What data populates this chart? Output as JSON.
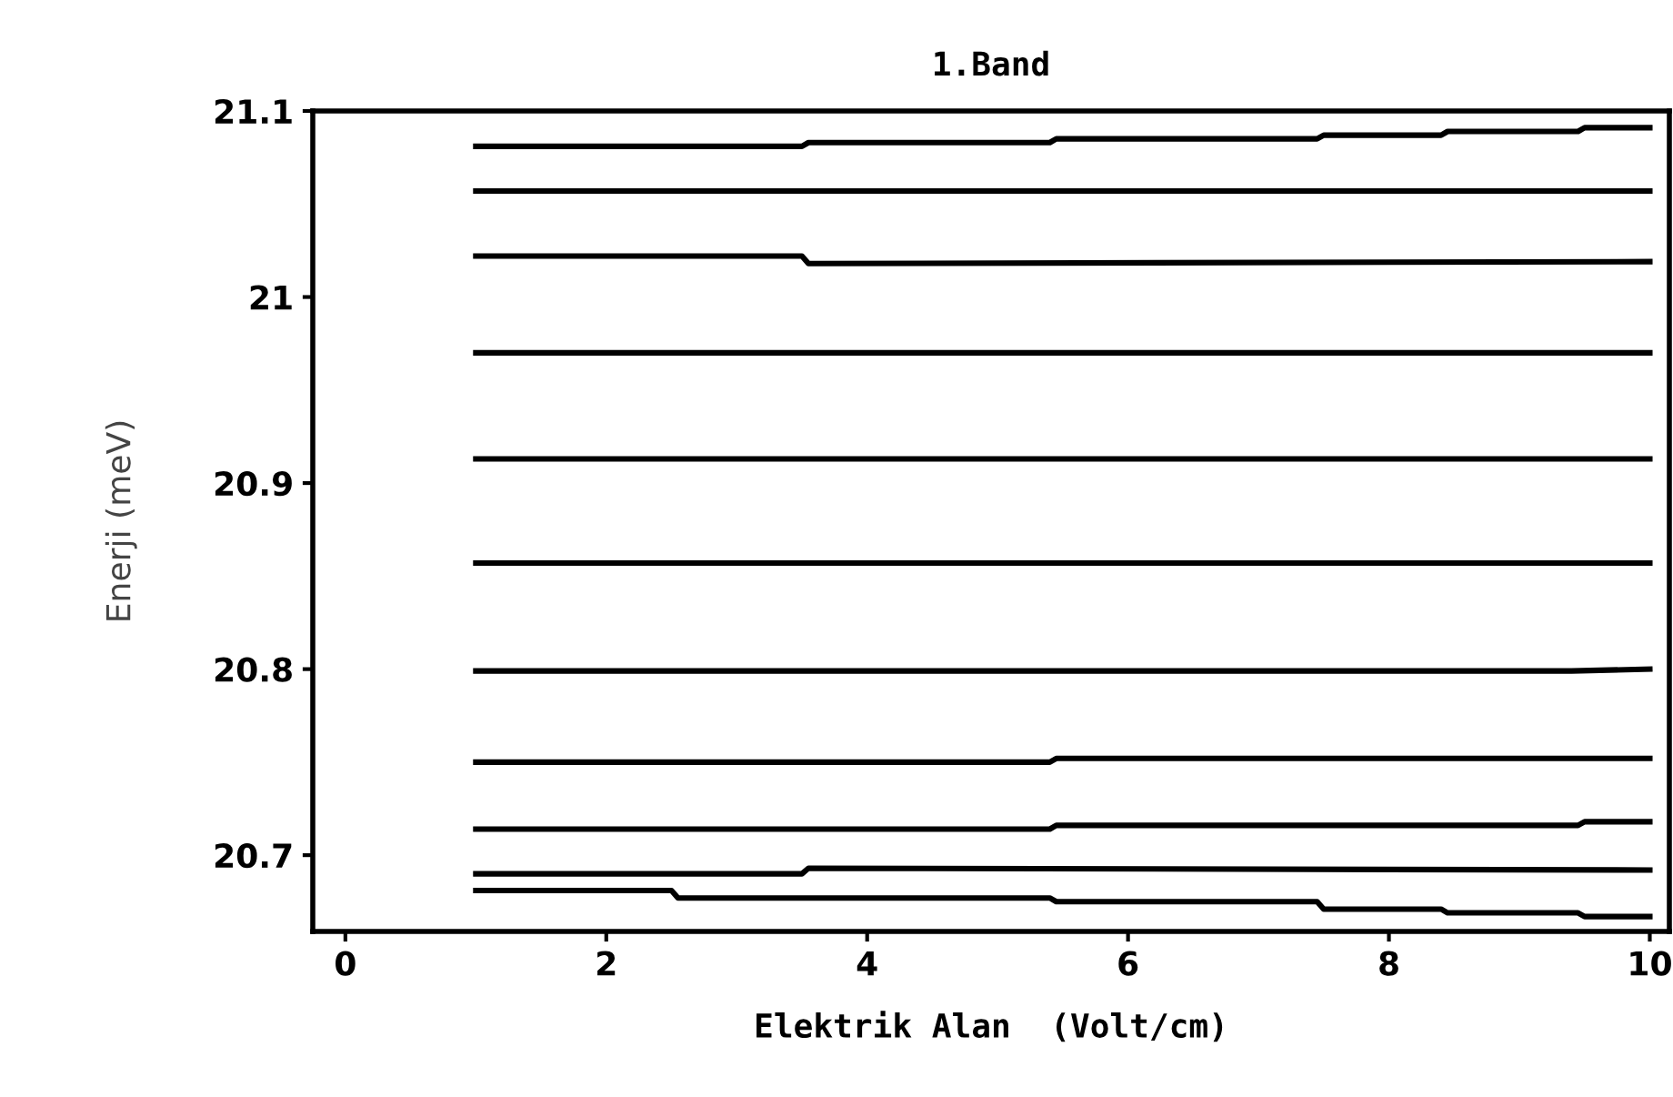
{
  "chart_data": {
    "type": "line",
    "title": "1.Band",
    "xlabel": "Elektrik Alan  (Volt/cm)",
    "ylabel": "Enerji (meV)",
    "xlim": [
      -0.25,
      10.15
    ],
    "ylim": [
      20.659,
      21.1
    ],
    "xticks": [
      0,
      2,
      4,
      6,
      8,
      10
    ],
    "yticks": [
      20.7,
      20.8,
      20.9,
      21,
      21.1
    ],
    "grid": false,
    "legend": false,
    "marker": "none",
    "line_style": "solid",
    "series": [
      {
        "color": "#000000",
        "x": [
          1,
          3.5,
          3.55,
          5.4,
          5.45,
          7.45,
          7.5,
          8.4,
          8.45,
          9.45,
          9.5,
          10
        ],
        "values": [
          21.081,
          21.081,
          21.083,
          21.083,
          21.085,
          21.085,
          21.087,
          21.087,
          21.089,
          21.089,
          21.091,
          21.091
        ]
      },
      {
        "color": "#000000",
        "x": [
          1,
          10
        ],
        "values": [
          21.057,
          21.057
        ]
      },
      {
        "color": "#000000",
        "x": [
          1,
          3.5,
          3.55,
          10
        ],
        "values": [
          21.022,
          21.022,
          21.018,
          21.019
        ]
      },
      {
        "color": "#000000",
        "x": [
          1,
          10
        ],
        "values": [
          20.97,
          20.97
        ]
      },
      {
        "color": "#000000",
        "x": [
          1,
          10
        ],
        "values": [
          20.913,
          20.913
        ]
      },
      {
        "color": "#000000",
        "x": [
          1,
          10
        ],
        "values": [
          20.857,
          20.857
        ]
      },
      {
        "color": "#000000",
        "x": [
          1,
          9.4,
          10
        ],
        "values": [
          20.799,
          20.799,
          20.8
        ]
      },
      {
        "color": "#000000",
        "x": [
          1,
          5.4,
          5.45,
          10
        ],
        "values": [
          20.75,
          20.75,
          20.752,
          20.752
        ]
      },
      {
        "color": "#000000",
        "x": [
          1,
          5.4,
          5.45,
          9.45,
          9.5,
          10
        ],
        "values": [
          20.714,
          20.714,
          20.716,
          20.716,
          20.718,
          20.718
        ]
      },
      {
        "color": "#000000",
        "x": [
          1,
          3.5,
          3.55,
          10
        ],
        "values": [
          20.69,
          20.69,
          20.693,
          20.692
        ]
      },
      {
        "color": "#000000",
        "x": [
          1,
          2.5,
          2.55,
          5.4,
          5.45,
          7.45,
          7.5,
          8.4,
          8.45,
          9.45,
          9.5,
          10
        ],
        "values": [
          20.681,
          20.681,
          20.677,
          20.677,
          20.675,
          20.675,
          20.671,
          20.671,
          20.669,
          20.669,
          20.667,
          20.667
        ]
      }
    ]
  }
}
